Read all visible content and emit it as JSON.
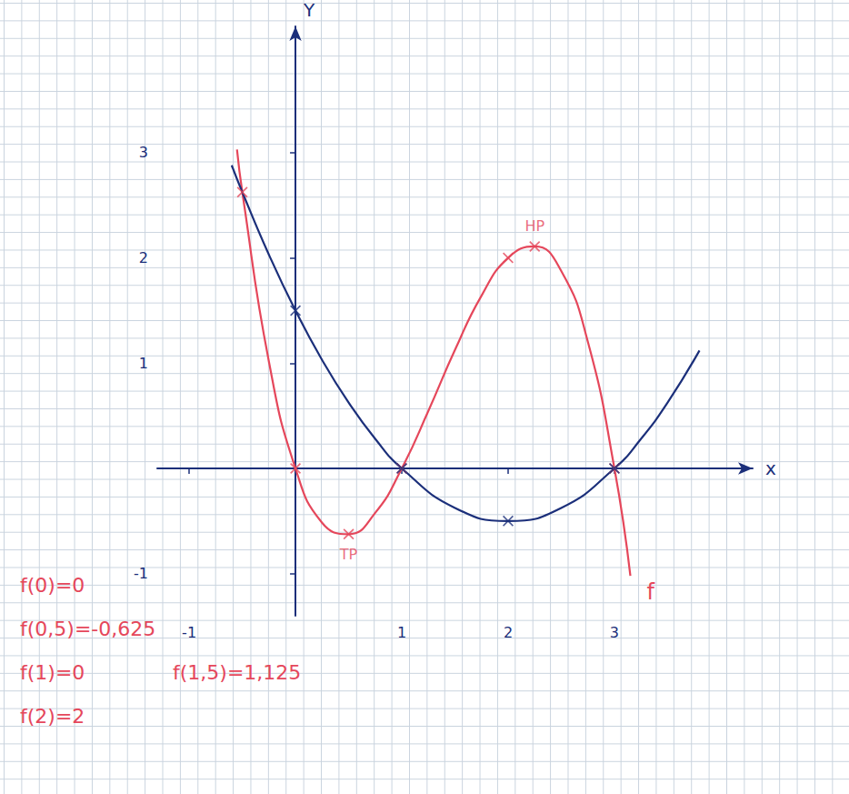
{
  "chart_data": {
    "type": "line",
    "x_label": "x",
    "y_label": "Y",
    "xlim": [
      -1.3,
      4.3
    ],
    "ylim": [
      -1.4,
      4.2
    ],
    "xticks": [
      -1,
      1,
      2,
      3
    ],
    "yticks": [
      -1,
      1,
      2,
      3
    ],
    "grid": true,
    "series": [
      {
        "name": "f",
        "color": "#e5475b",
        "marker": "x",
        "x": [
          -0.55,
          -0.5,
          -0.25,
          0,
          0.25,
          0.5,
          0.75,
          1,
          1.25,
          1.5,
          1.75,
          2,
          2.25,
          2.5,
          2.75,
          3,
          3.15
        ],
        "values": [
          3.03,
          2.625,
          1.016,
          0,
          -0.516,
          -0.625,
          -0.422,
          0,
          0.547,
          1.125,
          1.641,
          2,
          2.109,
          1.875,
          1.203,
          0,
          -1.02
        ],
        "points": [
          {
            "x": -0.5,
            "y": 2.625
          },
          {
            "x": 0,
            "y": 0
          },
          {
            "x": 0.5,
            "y": -0.625,
            "label": "TP"
          },
          {
            "x": 1,
            "y": 0
          },
          {
            "x": 2,
            "y": 2
          },
          {
            "x": 2.25,
            "y": 2.109,
            "label": "HP"
          },
          {
            "x": 3,
            "y": 0
          }
        ]
      },
      {
        "color": "#1b2f7a",
        "marker": "x",
        "x": [
          -0.6,
          -0.5,
          -0.25,
          0,
          0.25,
          0.5,
          0.75,
          1,
          1.5,
          2,
          2.5,
          3,
          3.25,
          3.5,
          3.8
        ],
        "values": [
          2.88,
          2.625,
          2.031,
          1.5,
          1.031,
          0.625,
          0.281,
          0,
          -0.375,
          -0.5,
          -0.375,
          0,
          0.281,
          0.625,
          1.12
        ],
        "points": [
          {
            "x": 0,
            "y": 1.5
          },
          {
            "x": 1,
            "y": 0
          },
          {
            "x": 2,
            "y": -0.5
          },
          {
            "x": 3,
            "y": 0
          }
        ]
      }
    ],
    "annotations": [
      "f(0)=0",
      "f(0,5)=-0,625",
      "f(1)=0",
      "f(1,5)=1,125",
      "f(2)=2"
    ]
  }
}
